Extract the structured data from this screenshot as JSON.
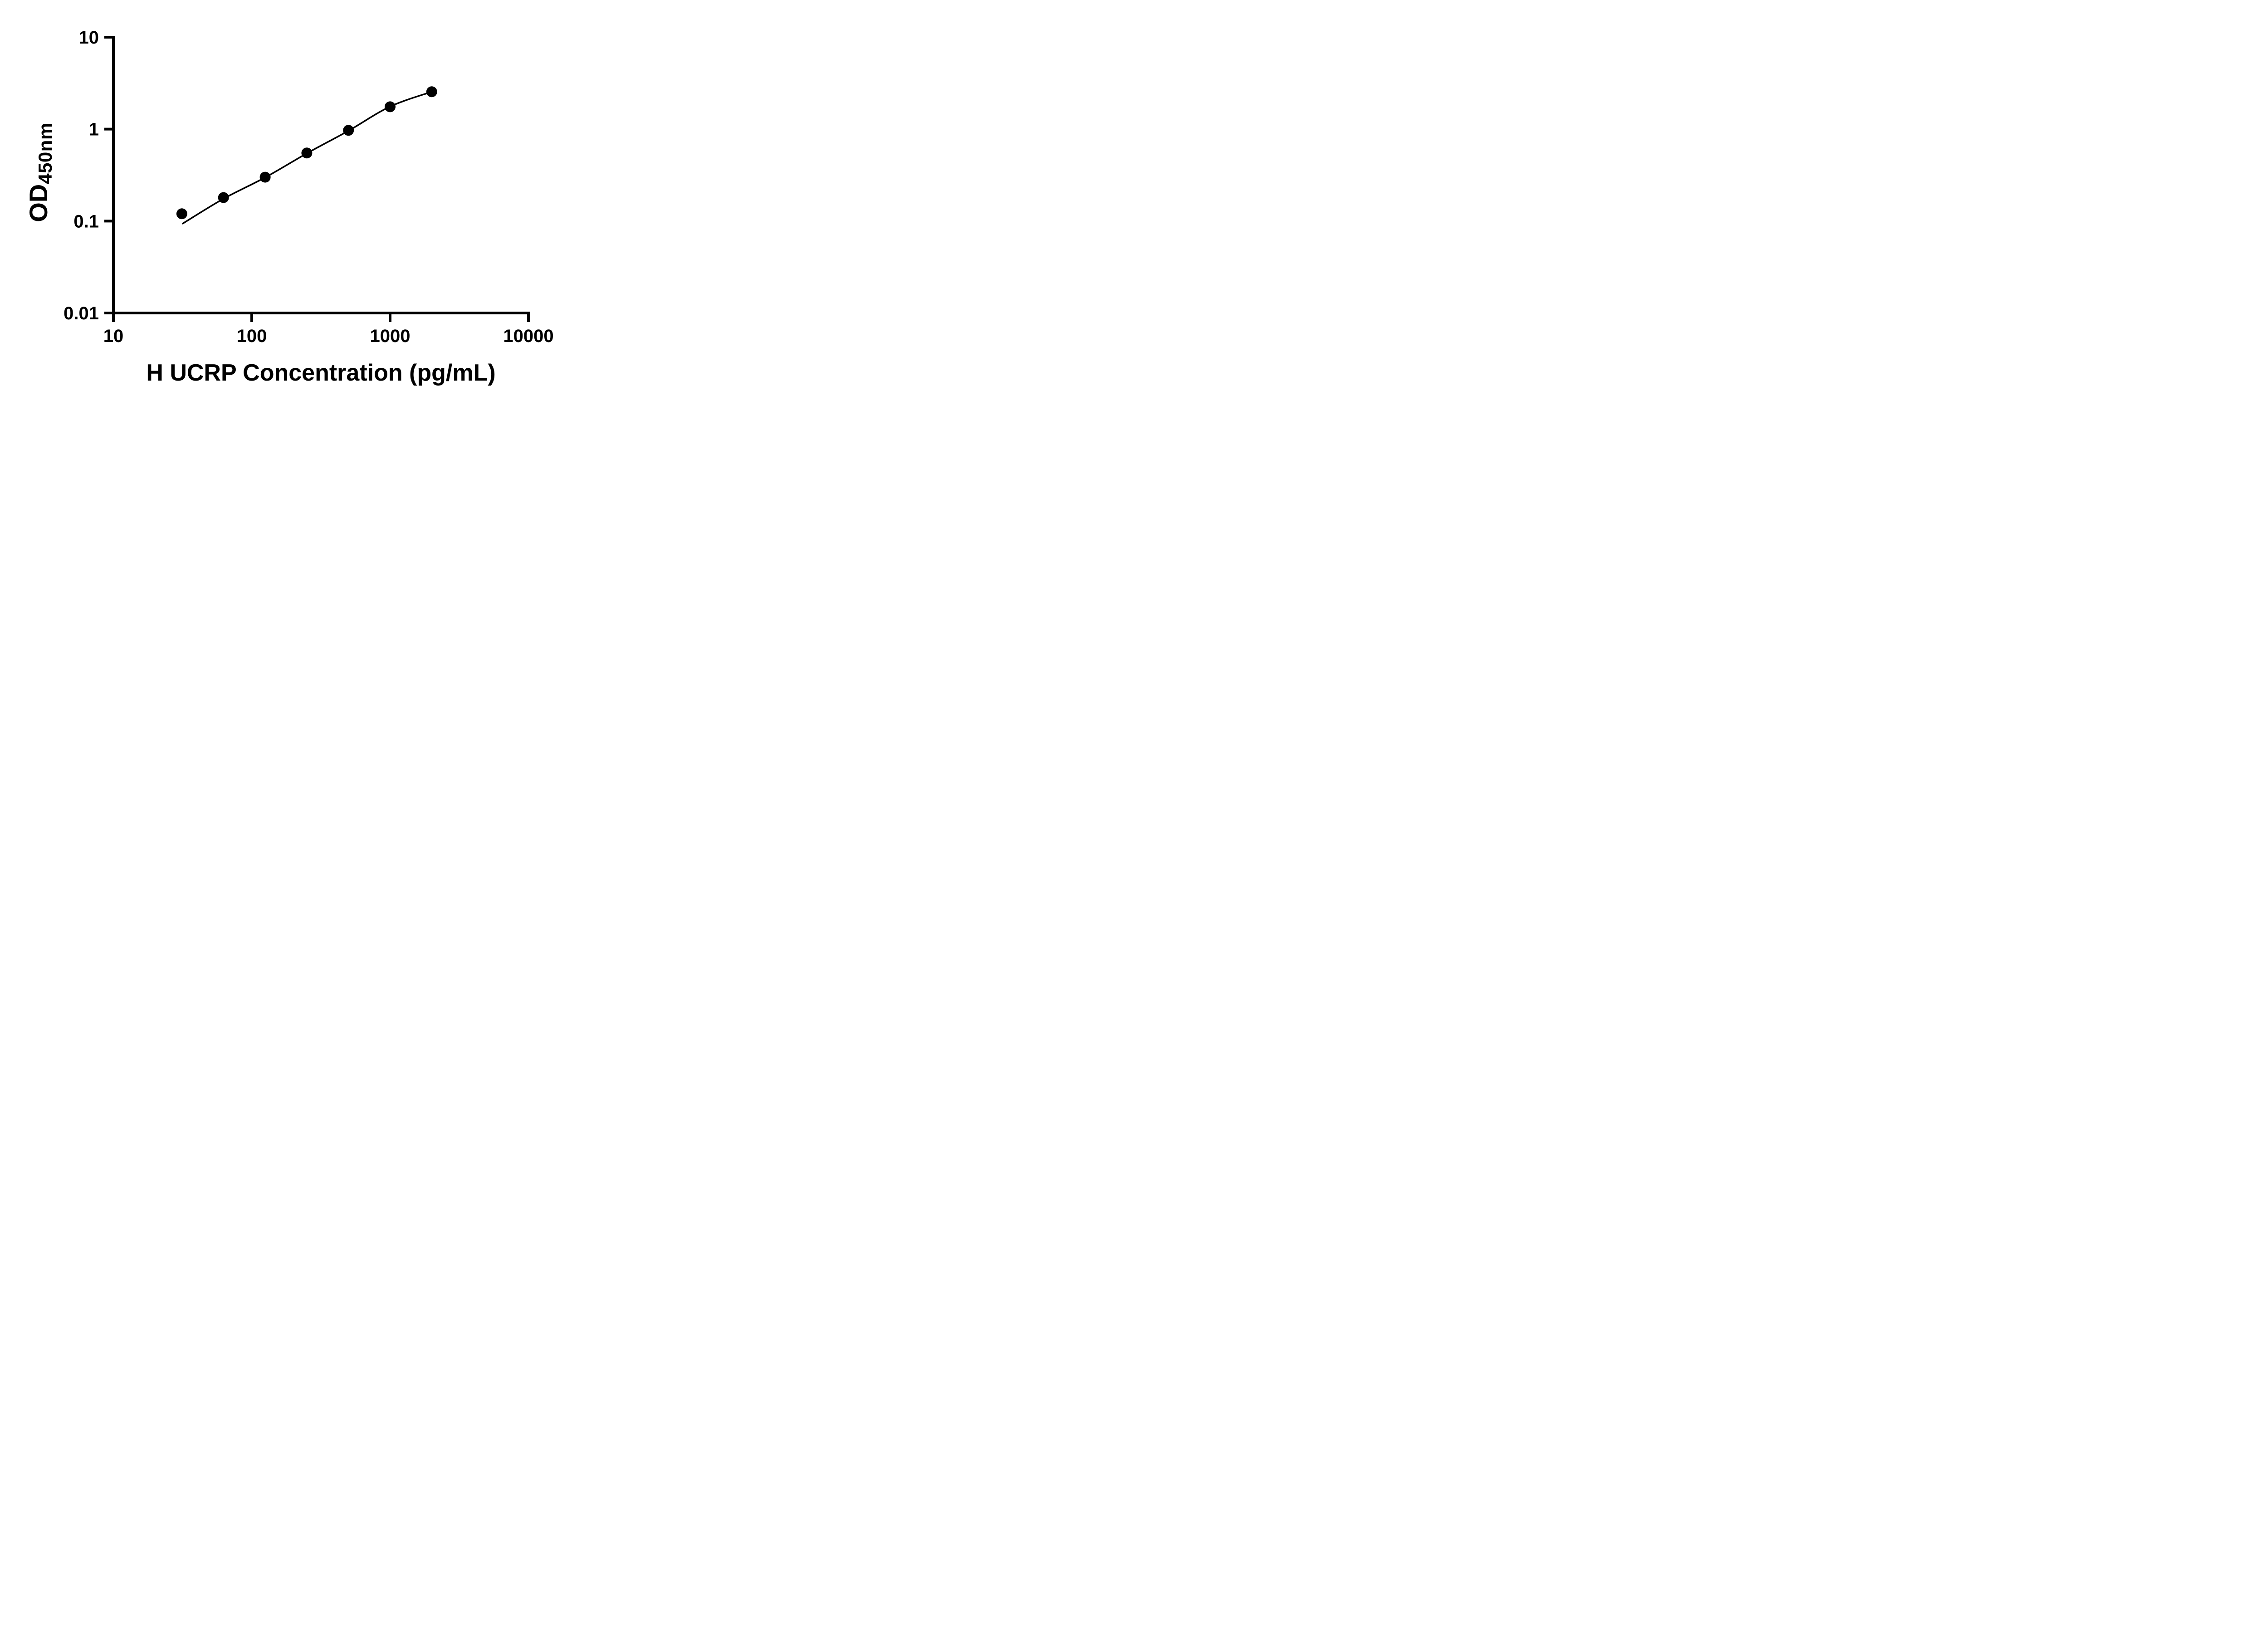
{
  "chart": {
    "background_color": "#ffffff",
    "axis_color": "#000000",
    "point_color": "#000000",
    "curve_color": "#000000",
    "tick_label_color": "#000000"
  },
  "chart_data": {
    "type": "scatter",
    "title": "",
    "xlabel": "H UCRP Concentration (pg/mL)",
    "ylabel": "OD450nm",
    "ylabel_main": "OD",
    "ylabel_sub": "450nm",
    "x_scale": "log10",
    "y_scale": "log10",
    "xlim": [
      10,
      10000
    ],
    "ylim": [
      0.01,
      10
    ],
    "grid": "off",
    "legend": "none",
    "x_ticks": [
      10,
      100,
      1000,
      10000
    ],
    "x_tick_labels": [
      "10",
      "100",
      "1000",
      "10000"
    ],
    "y_ticks": [
      0.01,
      0.1,
      1,
      10
    ],
    "y_tick_labels": [
      "0.01",
      "0.1",
      "1",
      "10"
    ],
    "series": [
      {
        "name": "standard-curve-points",
        "marker": "filled-circle",
        "points": [
          {
            "x": 31.25,
            "y": 0.12
          },
          {
            "x": 62.5,
            "y": 0.18
          },
          {
            "x": 125,
            "y": 0.3
          },
          {
            "x": 250,
            "y": 0.55
          },
          {
            "x": 500,
            "y": 0.97
          },
          {
            "x": 1000,
            "y": 1.75
          },
          {
            "x": 2000,
            "y": 2.55
          }
        ]
      }
    ],
    "fit_curve": [
      {
        "x": 31.7,
        "y": 0.094
      },
      {
        "x": 62.5,
        "y": 0.175
      },
      {
        "x": 125,
        "y": 0.298
      },
      {
        "x": 250,
        "y": 0.545
      },
      {
        "x": 500,
        "y": 0.96
      },
      {
        "x": 1000,
        "y": 1.76
      },
      {
        "x": 2000,
        "y": 2.55
      }
    ]
  }
}
